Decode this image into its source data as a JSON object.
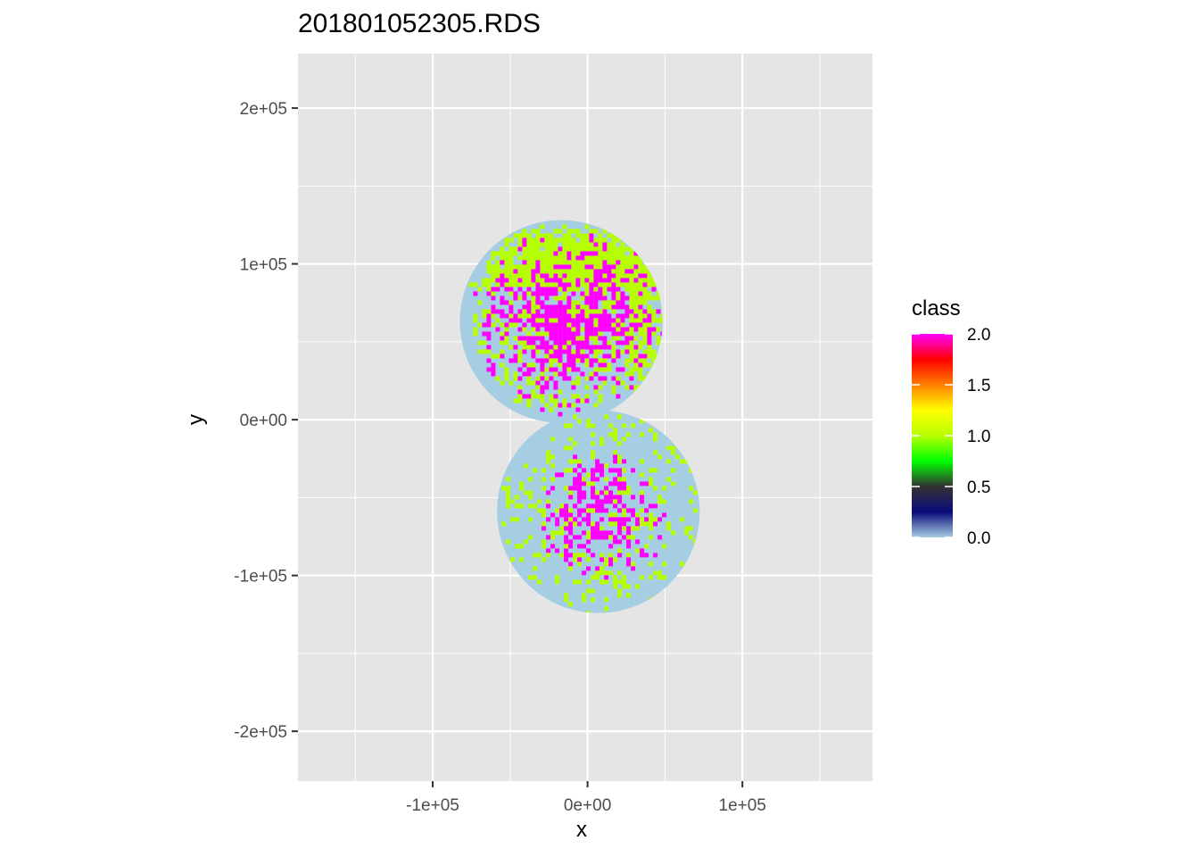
{
  "chart_data": {
    "type": "heatmap",
    "title": "201801052305.RDS",
    "xlabel": "x",
    "ylabel": "y",
    "xlim": [
      -187000,
      184000
    ],
    "ylim": [
      -232000,
      235000
    ],
    "x_ticks": [
      {
        "value": -100000,
        "label": "-1e+05"
      },
      {
        "value": 0,
        "label": "0e+00"
      },
      {
        "value": 100000,
        "label": "1e+05"
      }
    ],
    "y_ticks": [
      {
        "value": 200000,
        "label": "2e+05"
      },
      {
        "value": 100000,
        "label": "1e+05"
      },
      {
        "value": 0,
        "label": "0e+00"
      },
      {
        "value": -100000,
        "label": "-1e+05"
      },
      {
        "value": -200000,
        "label": "-2e+05"
      }
    ],
    "grid": true,
    "radar_disks": [
      {
        "center": [
          -17000,
          63000
        ],
        "radius": 65500
      },
      {
        "center": [
          7000,
          -59000
        ],
        "radius": 65500
      }
    ],
    "legend": {
      "title": "class",
      "placement": "right",
      "range": [
        0.0,
        2.0
      ],
      "breaks": [
        {
          "value": 2.0,
          "label": "2.0"
        },
        {
          "value": 1.5,
          "label": "1.5"
        },
        {
          "value": 1.0,
          "label": "1.0"
        },
        {
          "value": 0.5,
          "label": "0.5"
        },
        {
          "value": 0.0,
          "label": "0.0"
        }
      ],
      "color_stops": [
        {
          "value": 0.0,
          "color": "#a6cee3"
        },
        {
          "value": 0.25,
          "color": "#0b0b7a"
        },
        {
          "value": 0.5,
          "color": "#333333"
        },
        {
          "value": 0.75,
          "color": "#00ff00"
        },
        {
          "value": 1.0,
          "color": "#b7ff00"
        },
        {
          "value": 1.25,
          "color": "#ffff00"
        },
        {
          "value": 1.5,
          "color": "#ff7f00"
        },
        {
          "value": 1.75,
          "color": "#ff0000"
        },
        {
          "value": 2.0,
          "color": "#ff00ff"
        }
      ]
    },
    "colors": {
      "panel": "#e5e5e5",
      "grid": "#ffffff",
      "class_0": "#a6cee3",
      "class_1": "#b7ff00",
      "class_2": "#ff00ff"
    }
  }
}
